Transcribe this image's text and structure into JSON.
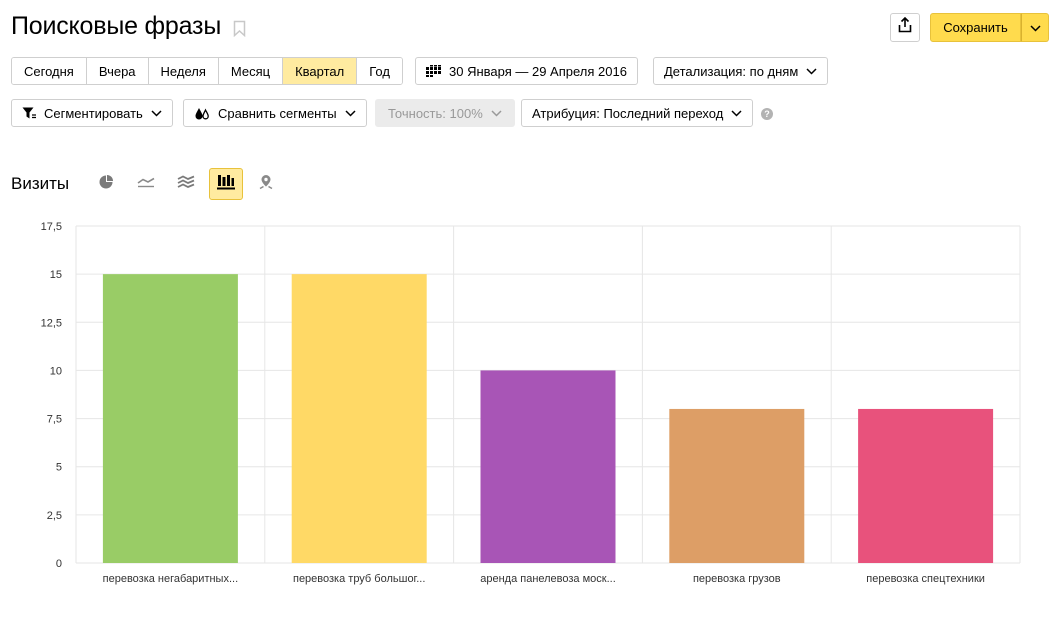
{
  "header": {
    "title": "Поисковые фразы",
    "save_label": "Сохранить"
  },
  "period": {
    "presets": [
      {
        "label": "Сегодня",
        "active": false
      },
      {
        "label": "Вчера",
        "active": false
      },
      {
        "label": "Неделя",
        "active": false
      },
      {
        "label": "Месяц",
        "active": false
      },
      {
        "label": "Квартал",
        "active": true
      },
      {
        "label": "Год",
        "active": false
      }
    ],
    "date_range": "30 Января — 29 Апреля 2016",
    "detail_label": "Детализация: по дням"
  },
  "filters": {
    "segment_label": "Сегментировать",
    "compare_label": "Сравнить сегменты",
    "accuracy_label": "Точность: 100%",
    "attribution_label": "Атрибуция: Последний переход",
    "help_glyph": "?"
  },
  "view": {
    "metric_label": "Визиты",
    "chart_types": [
      {
        "icon": "pie-chart-icon",
        "active": false
      },
      {
        "icon": "line-chart-icon",
        "active": false
      },
      {
        "icon": "area-chart-icon",
        "active": false
      },
      {
        "icon": "bar-chart-icon",
        "active": true
      },
      {
        "icon": "map-icon",
        "active": false
      }
    ]
  },
  "chart_data": {
    "type": "bar",
    "categories": [
      "перевозка негабаритных...",
      "перевозка труб большог...",
      "аренда панелевоза моск...",
      "перевозка грузов",
      "перевозка спецтехники"
    ],
    "values": [
      15,
      15,
      10,
      8,
      8
    ],
    "colors": [
      "#99cc66",
      "#ffd966",
      "#a855b6",
      "#dd9e66",
      "#e8527c"
    ],
    "ylim": [
      0,
      17.5
    ],
    "yticks": [
      "0",
      "2,5",
      "5",
      "7,5",
      "10",
      "12,5",
      "15",
      "17,5"
    ],
    "grid": true
  }
}
